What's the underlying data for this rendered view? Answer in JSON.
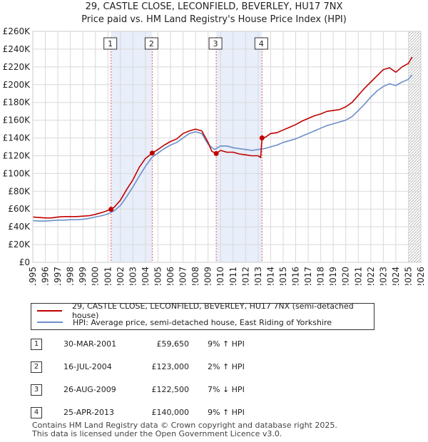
{
  "title": "29, CASTLE CLOSE, LECONFIELD, BEVERLEY, HU17 7NX",
  "subtitle": "Price paid vs. HM Land Registry's House Price Index (HPI)",
  "colors": {
    "red": "#c00000",
    "blue": "#6b8fc8",
    "shade": "#e8eefa",
    "grid": "#d9d9d9"
  },
  "chart_data": {
    "type": "line",
    "title": "Price paid vs. HM Land Registry's House Price Index (HPI)",
    "xlabel": "",
    "ylabel": "",
    "xlim": [
      1995,
      2026
    ],
    "ylim": [
      0,
      260000
    ],
    "y_ticks": [
      0,
      20000,
      40000,
      60000,
      80000,
      100000,
      120000,
      140000,
      160000,
      180000,
      200000,
      220000,
      240000,
      260000
    ],
    "y_tick_labels": [
      "£0",
      "£20K",
      "£40K",
      "£60K",
      "£80K",
      "£100K",
      "£120K",
      "£140K",
      "£160K",
      "£180K",
      "£200K",
      "£220K",
      "£240K",
      "£260K"
    ],
    "x_ticks": [
      1995,
      1996,
      1997,
      1998,
      1999,
      2000,
      2001,
      2002,
      2003,
      2004,
      2005,
      2006,
      2007,
      2008,
      2009,
      2010,
      2011,
      2012,
      2013,
      2014,
      2015,
      2016,
      2017,
      2018,
      2019,
      2020,
      2021,
      2022,
      2023,
      2024,
      2025,
      2026
    ],
    "x_tick_labels": [
      "1995",
      "1996",
      "1997",
      "1998",
      "1999",
      "2000",
      "2001",
      "2002",
      "2003",
      "2004",
      "2005",
      "2006",
      "2007",
      "2008",
      "2009",
      "2010",
      "2011",
      "2012",
      "2013",
      "2014",
      "2015",
      "2016",
      "2017",
      "2018",
      "2019",
      "2020",
      "2021",
      "2022",
      "2023",
      "2024",
      "2025",
      "2026"
    ],
    "grid": true,
    "hatch_from": 2025.0,
    "shaded_spans": [
      [
        2001.25,
        2004.54
      ],
      [
        2009.65,
        2013.31
      ]
    ],
    "series": [
      {
        "name": "29, CASTLE CLOSE, LECONFIELD, BEVERLEY, HU17 7NX (semi-detached house)",
        "color": "red",
        "x": [
          1995,
          1995.5,
          1996,
          1996.5,
          1997,
          1997.5,
          1998,
          1998.5,
          1999,
          1999.5,
          2000,
          2000.5,
          2001,
          2001.25,
          2001.5,
          2002,
          2002.5,
          2003,
          2003.5,
          2004,
          2004.54,
          2005,
          2005.5,
          2006,
          2006.5,
          2007,
          2007.5,
          2008,
          2008.5,
          2009,
          2009.3,
          2009.65,
          2010,
          2010.5,
          2011,
          2011.5,
          2012,
          2012.5,
          2013,
          2013.2,
          2013.31,
          2013.6,
          2014,
          2014.5,
          2015,
          2015.5,
          2016,
          2016.5,
          2017,
          2017.5,
          2018,
          2018.5,
          2019,
          2019.5,
          2020,
          2020.5,
          2021,
          2021.5,
          2022,
          2022.5,
          2023,
          2023.5,
          2024,
          2024.5,
          2025,
          2025.3
        ],
        "values": [
          51000,
          50500,
          50000,
          50000,
          51000,
          51500,
          51500,
          51500,
          52000,
          52500,
          54000,
          56000,
          58500,
          59650,
          62000,
          70000,
          82000,
          93000,
          107000,
          117000,
          123000,
          127000,
          132000,
          136000,
          139000,
          145000,
          148000,
          150000,
          148000,
          135000,
          125000,
          122500,
          126000,
          124000,
          124000,
          122000,
          121000,
          120000,
          120000,
          118000,
          140000,
          141000,
          145000,
          146000,
          149000,
          152000,
          155000,
          159000,
          162000,
          165000,
          167000,
          170000,
          171000,
          172000,
          175000,
          180000,
          188000,
          196000,
          203000,
          210000,
          217000,
          219000,
          214000,
          220000,
          224000,
          231000
        ]
      },
      {
        "name": "HPI: Average price, semi-detached house, East Riding of Yorkshire",
        "color": "blue",
        "x": [
          1995,
          1995.5,
          1996,
          1996.5,
          1997,
          1997.5,
          1998,
          1998.5,
          1999,
          1999.5,
          2000,
          2000.5,
          2001,
          2001.5,
          2002,
          2002.5,
          2003,
          2003.5,
          2004,
          2004.5,
          2005,
          2005.5,
          2006,
          2006.5,
          2007,
          2007.5,
          2008,
          2008.5,
          2009,
          2009.5,
          2010,
          2010.5,
          2011,
          2011.5,
          2012,
          2012.5,
          2013,
          2013.5,
          2014,
          2014.5,
          2015,
          2015.5,
          2016,
          2016.5,
          2017,
          2017.5,
          2018,
          2018.5,
          2019,
          2019.5,
          2020,
          2020.5,
          2021,
          2021.5,
          2022,
          2022.5,
          2023,
          2023.5,
          2024,
          2024.5,
          2025,
          2025.3
        ],
        "values": [
          47000,
          46500,
          46500,
          47000,
          47500,
          47500,
          48000,
          48000,
          48500,
          49500,
          51000,
          52500,
          54500,
          58000,
          64000,
          74000,
          85000,
          97000,
          108000,
          118000,
          123000,
          128000,
          132000,
          135000,
          140000,
          145000,
          147000,
          145000,
          133000,
          127000,
          131000,
          131000,
          129000,
          128000,
          127000,
          126000,
          127000,
          128000,
          130000,
          132000,
          135000,
          137000,
          139000,
          142000,
          145000,
          148000,
          151000,
          154000,
          156000,
          158000,
          160000,
          164000,
          171000,
          178000,
          186000,
          193000,
          198000,
          201000,
          199000,
          203000,
          206000,
          211000
        ]
      }
    ],
    "transactions": [
      {
        "label": "1",
        "x": 2001.25,
        "y": 59650
      },
      {
        "label": "2",
        "x": 2004.54,
        "y": 123000
      },
      {
        "label": "3",
        "x": 2009.65,
        "y": 122500
      },
      {
        "label": "4",
        "x": 2013.31,
        "y": 140000
      }
    ]
  },
  "legend": {
    "red_label": "29, CASTLE CLOSE, LECONFIELD, BEVERLEY, HU17 7NX (semi-detached house)",
    "blue_label": "HPI: Average price, semi-detached house, East Riding of Yorkshire"
  },
  "table": [
    {
      "num": "1",
      "date": "30-MAR-2001",
      "price": "£59,650",
      "hpi": "9% ↑ HPI"
    },
    {
      "num": "2",
      "date": "16-JUL-2004",
      "price": "£123,000",
      "hpi": "2% ↑ HPI"
    },
    {
      "num": "3",
      "date": "26-AUG-2009",
      "price": "£122,500",
      "hpi": "7% ↓ HPI"
    },
    {
      "num": "4",
      "date": "25-APR-2013",
      "price": "£140,000",
      "hpi": "9% ↑ HPI"
    }
  ],
  "footer": {
    "line1": "Contains HM Land Registry data © Crown copyright and database right 2025.",
    "line2": "This data is licensed under the Open Government Licence v3.0."
  }
}
